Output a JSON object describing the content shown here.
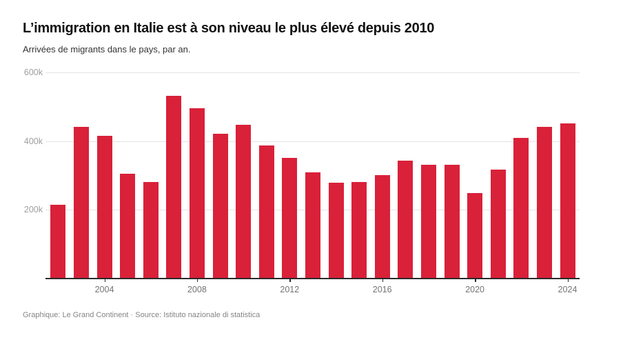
{
  "header": {
    "title": "L’immigration en Italie est à son niveau le plus élevé depuis 2010",
    "subtitle": "Arrivées de migrants dans le pays, par an."
  },
  "footer": {
    "credit": "Graphique: Le Grand Continent · Source: Istituto nazionale di statistica"
  },
  "chart_data": {
    "type": "bar",
    "title": "L’immigration en Italie est à son niveau le plus élevé depuis 2010",
    "subtitle": "Arrivées de migrants dans le pays, par an.",
    "categories": [
      2002,
      2003,
      2004,
      2005,
      2006,
      2007,
      2008,
      2009,
      2010,
      2011,
      2012,
      2013,
      2014,
      2015,
      2016,
      2017,
      2018,
      2019,
      2020,
      2021,
      2022,
      2023,
      2024
    ],
    "values": [
      215000,
      441000,
      416000,
      306000,
      281000,
      531000,
      495000,
      422000,
      448000,
      387000,
      351000,
      309000,
      279000,
      281000,
      301000,
      344000,
      332000,
      332000,
      248000,
      318000,
      410000,
      441000,
      452000
    ],
    "xlabel": "",
    "ylabel": "",
    "ylim": [
      0,
      600000
    ],
    "yticks": [
      {
        "value": 200000,
        "label": "200k"
      },
      {
        "value": 400000,
        "label": "400k"
      },
      {
        "value": 600000,
        "label": "600k"
      }
    ],
    "xticks": [
      2004,
      2008,
      2012,
      2016,
      2020,
      2024
    ],
    "bar_color": "#d92139",
    "grid": true,
    "legend": false,
    "source": "Istituto nazionale di statistica",
    "credit": "Graphique: Le Grand Continent"
  }
}
